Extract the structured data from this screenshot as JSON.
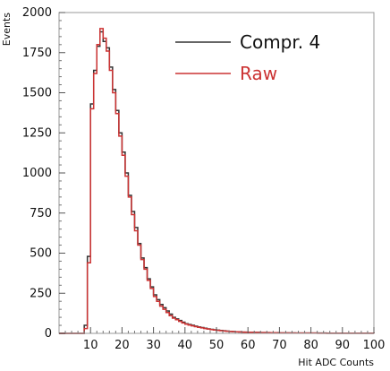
{
  "chart_data": {
    "type": "line",
    "drawstyle": "steps",
    "xlabel": "Hit ADC Counts",
    "ylabel": "Events",
    "xlim": [
      0,
      100
    ],
    "ylim": [
      0,
      2000
    ],
    "x_ticks": [
      10,
      20,
      30,
      40,
      50,
      60,
      70,
      80,
      90,
      100
    ],
    "y_ticks": [
      0,
      250,
      500,
      750,
      1000,
      1250,
      1500,
      1750,
      2000
    ],
    "grid": false,
    "legend_position": "top-right",
    "bin_width": 1,
    "x": [
      0,
      1,
      2,
      3,
      4,
      5,
      6,
      7,
      8,
      9,
      10,
      11,
      12,
      13,
      14,
      15,
      16,
      17,
      18,
      19,
      20,
      21,
      22,
      23,
      24,
      25,
      26,
      27,
      28,
      29,
      30,
      31,
      32,
      33,
      34,
      35,
      36,
      37,
      38,
      39,
      40,
      41,
      42,
      43,
      44,
      45,
      46,
      47,
      48,
      49,
      50,
      51,
      52,
      53,
      54,
      55,
      56,
      57,
      58,
      59,
      60,
      61,
      62,
      63,
      64,
      65,
      66,
      67,
      68,
      69,
      70,
      71,
      72,
      73,
      74,
      75,
      76,
      77,
      78,
      79,
      80,
      81,
      82,
      83,
      84,
      85,
      86,
      87,
      88,
      89,
      90,
      91,
      92,
      93,
      94,
      95,
      96,
      97,
      98,
      99
    ],
    "series": [
      {
        "name": "Compr. 4",
        "color": "#333333",
        "values": [
          0,
          0,
          0,
          0,
          0,
          0,
          0,
          0,
          50,
          480,
          1430,
          1640,
          1790,
          1880,
          1820,
          1780,
          1660,
          1520,
          1390,
          1250,
          1130,
          1000,
          860,
          760,
          660,
          560,
          470,
          410,
          340,
          290,
          240,
          210,
          180,
          160,
          140,
          120,
          100,
          90,
          80,
          70,
          60,
          55,
          50,
          45,
          40,
          36,
          32,
          28,
          25,
          22,
          20,
          18,
          16,
          14,
          12,
          11,
          10,
          9,
          8,
          8,
          7,
          7,
          6,
          6,
          5,
          5,
          5,
          4,
          4,
          4,
          3,
          3,
          3,
          3,
          3,
          2,
          2,
          2,
          2,
          2,
          2,
          2,
          2,
          2,
          2,
          1,
          1,
          1,
          1,
          1,
          1,
          1,
          1,
          1,
          1,
          1,
          1,
          1,
          1,
          1
        ]
      },
      {
        "name": "Raw",
        "color": "#cc3333",
        "values": [
          0,
          0,
          0,
          0,
          0,
          0,
          0,
          0,
          30,
          440,
          1400,
          1620,
          1800,
          1900,
          1840,
          1760,
          1640,
          1500,
          1370,
          1230,
          1110,
          980,
          850,
          740,
          640,
          550,
          460,
          400,
          330,
          280,
          230,
          200,
          170,
          150,
          130,
          110,
          95,
          85,
          75,
          65,
          57,
          52,
          47,
          42,
          38,
          34,
          30,
          27,
          24,
          21,
          19,
          17,
          15,
          13,
          12,
          11,
          10,
          9,
          8,
          7,
          7,
          6,
          6,
          5,
          5,
          5,
          4,
          4,
          4,
          3,
          3,
          3,
          3,
          2,
          2,
          2,
          2,
          2,
          2,
          2,
          2,
          2,
          1,
          1,
          1,
          1,
          1,
          1,
          1,
          1,
          1,
          1,
          1,
          1,
          1,
          1,
          1,
          1,
          1,
          1
        ]
      }
    ]
  }
}
